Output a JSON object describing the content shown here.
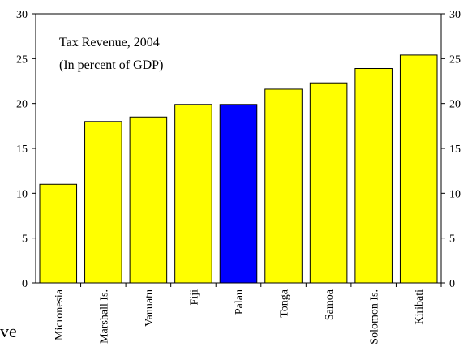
{
  "chart_data": {
    "type": "bar",
    "annotation_line1": "Tax Revenue, 2004",
    "annotation_line2": "(In percent of GDP)",
    "categories": [
      "Micronesia",
      "Marshall Is.",
      "Vanuatu",
      "Fiji",
      "Palau",
      "Tonga",
      "Samoa",
      "Solomon Is.",
      "Kiribati"
    ],
    "values": [
      11.0,
      18.0,
      18.5,
      19.9,
      19.9,
      21.6,
      22.3,
      23.9,
      25.4
    ],
    "highlight_category": "Palau",
    "ylim": [
      0,
      30
    ],
    "yticks": [
      0,
      5,
      10,
      15,
      20,
      25,
      30
    ],
    "secondary_y_axis": true,
    "grid": false,
    "colors": {
      "bar": "#ffff00",
      "highlight": "#0000ff",
      "bar_outline": "#000000"
    }
  },
  "fragment_text": "ve"
}
